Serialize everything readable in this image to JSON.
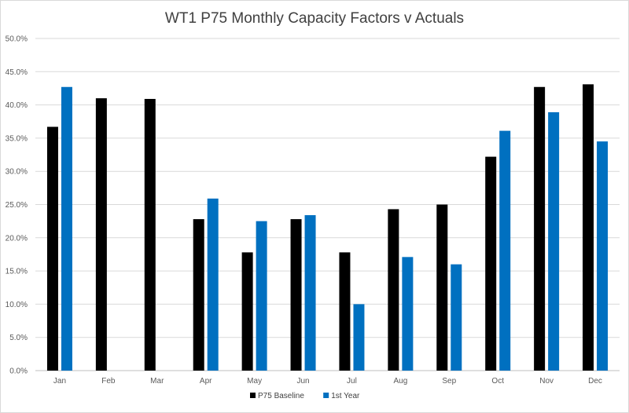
{
  "chart_data": {
    "type": "bar",
    "title": "WT1 P75 Monthly Capacity Factors v Actuals",
    "categories": [
      "Jan",
      "Feb",
      "Mar",
      "Apr",
      "May",
      "Jun",
      "Jul",
      "Aug",
      "Sep",
      "Oct",
      "Nov",
      "Dec"
    ],
    "series": [
      {
        "name": "P75 Baseline",
        "color": "#000000",
        "values": [
          36.7,
          41.0,
          40.9,
          22.8,
          17.8,
          22.8,
          17.8,
          24.3,
          25.0,
          32.2,
          42.7,
          43.1
        ]
      },
      {
        "name": "1st Year",
        "color": "#0070c0",
        "values": [
          42.7,
          null,
          null,
          25.9,
          22.5,
          23.4,
          10.0,
          17.1,
          16.0,
          36.1,
          38.9,
          34.5
        ]
      }
    ],
    "ylim": [
      0,
      50
    ],
    "yticks": [
      "0.0%",
      "5.0%",
      "10.0%",
      "15.0%",
      "20.0%",
      "25.0%",
      "30.0%",
      "35.0%",
      "40.0%",
      "45.0%",
      "50.0%"
    ],
    "grid": true,
    "legend": "bottom-center"
  }
}
